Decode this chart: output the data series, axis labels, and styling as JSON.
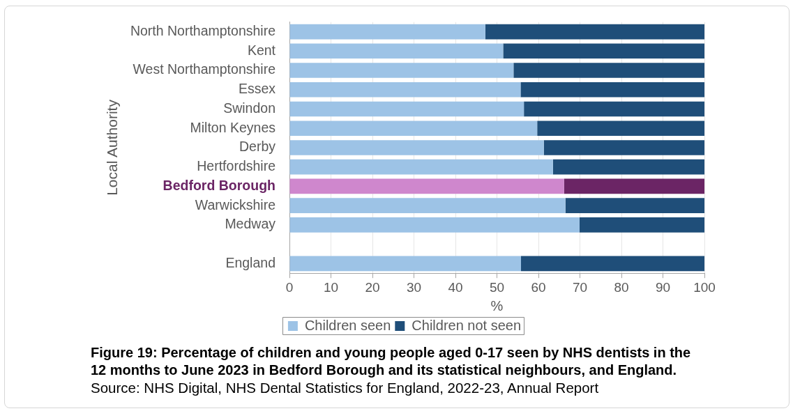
{
  "chart_data": {
    "type": "bar",
    "orientation": "horizontal",
    "stacked": true,
    "title": "Figure 19: Percentage of children and young people aged 0-17 seen by NHS dentists in the 12 months to June 2023 in Bedford Borough and its statistical neighbours, and England.",
    "xlabel": "%",
    "ylabel": "Local Authority",
    "annotations": [
      "Source: NHS Digital, NHS Dental Statistics for England, 2022-23, Annual Report"
    ],
    "categories": [
      "North Northamptonshire",
      "Kent",
      "West Northamptonshire",
      "Essex",
      "Swindon",
      "Milton Keynes",
      "Derby",
      "Hertfordshire",
      "Bedford Borough",
      "Warwickshire",
      "Medway",
      null,
      "England"
    ],
    "series": [
      {
        "name": "Children seen",
        "color": "#9dc3e6",
        "colors": [
          "#9dc3e6",
          "#9dc3e6",
          "#9dc3e6",
          "#9dc3e6",
          "#9dc3e6",
          "#9dc3e6",
          "#9dc3e6",
          "#9dc3e6",
          "#cf87cd",
          "#9dc3e6",
          "#9dc3e6",
          "#9dc3e6",
          "#9dc3e6"
        ],
        "values": [
          47.2,
          51.5,
          54.0,
          55.7,
          56.5,
          59.7,
          61.3,
          63.5,
          66.2,
          66.5,
          69.9,
          null,
          55.8
        ]
      },
      {
        "name": "Children not seen",
        "color": "#1f4e79",
        "colors": [
          "#1f4e79",
          "#1f4e79",
          "#1f4e79",
          "#1f4e79",
          "#1f4e79",
          "#1f4e79",
          "#1f4e79",
          "#1f4e79",
          "#6b2565",
          "#1f4e79",
          "#1f4e79",
          "#1f4e79",
          "#1f4e79"
        ],
        "values": [
          52.8,
          48.5,
          46.0,
          44.3,
          43.5,
          40.3,
          38.7,
          36.5,
          33.8,
          33.5,
          30.1,
          null,
          44.2
        ]
      }
    ],
    "xlim": [
      0,
      100
    ],
    "xticks": [
      0,
      10,
      20,
      30,
      40,
      50,
      60,
      70,
      80,
      90,
      100
    ],
    "grid": "x",
    "legend": "bottom"
  }
}
